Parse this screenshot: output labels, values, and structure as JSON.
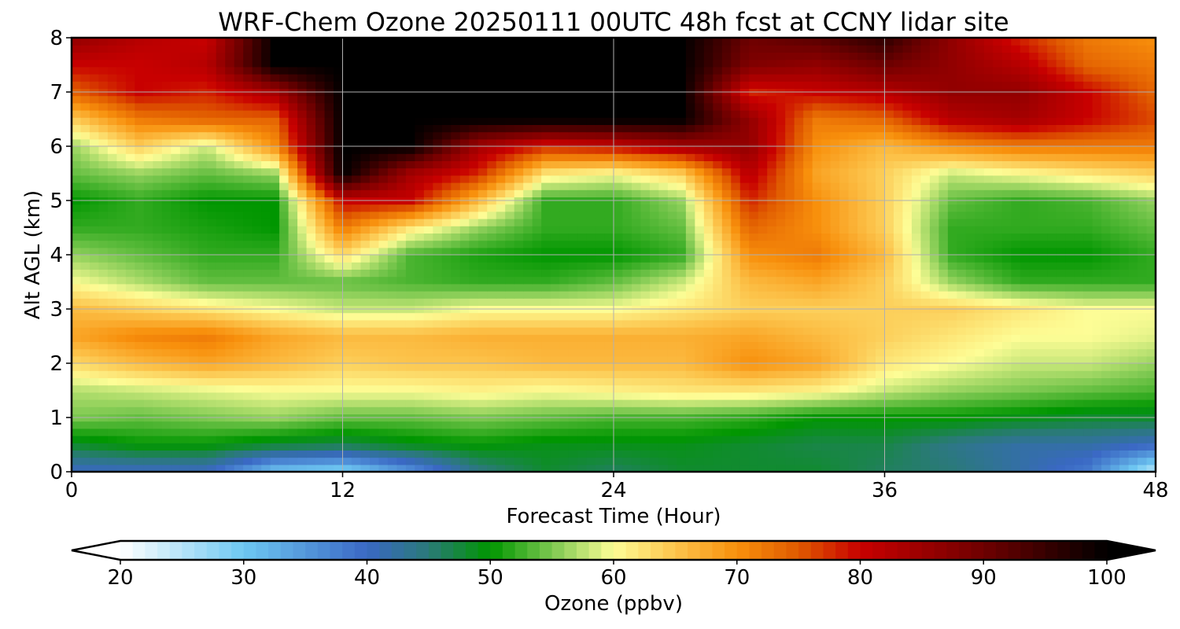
{
  "chart_data": {
    "type": "heatmap",
    "title": "WRF-Chem Ozone  20250111 00UTC 48h fcst at CCNY lidar site",
    "xlabel": "Forecast Time (Hour)",
    "ylabel": "Alt AGL (km)",
    "xlim": [
      0,
      48
    ],
    "ylim": [
      0,
      8
    ],
    "xticks": [
      "0",
      "12",
      "24",
      "36",
      "48"
    ],
    "yticks": [
      "0",
      "1",
      "2",
      "3",
      "4",
      "5",
      "6",
      "7",
      "8"
    ],
    "grid": true,
    "x": [
      0,
      3,
      6,
      9,
      12,
      15,
      18,
      21,
      24,
      27,
      30,
      33,
      36,
      39,
      42,
      45,
      48
    ],
    "y": [
      0,
      0.5,
      1,
      1.5,
      2,
      2.5,
      3,
      3.5,
      4,
      4.5,
      5,
      5.5,
      6,
      6.5,
      7,
      7.5,
      8
    ],
    "z": [
      [
        40,
        40,
        40,
        30,
        28,
        35,
        44,
        48,
        46,
        48,
        48,
        48,
        46,
        45,
        42,
        38,
        24
      ],
      [
        48,
        50,
        50,
        48,
        47,
        49,
        50,
        49,
        49,
        49,
        48,
        47,
        47,
        44,
        42,
        42,
        40
      ],
      [
        55,
        54,
        55,
        56,
        54,
        54,
        55,
        54,
        53,
        53,
        52,
        50,
        50,
        50,
        49,
        48,
        48
      ],
      [
        57,
        58,
        59,
        60,
        60,
        60,
        61,
        60,
        61,
        62,
        62,
        61,
        58,
        56,
        55,
        54,
        53
      ],
      [
        63,
        66,
        68,
        66,
        64,
        65,
        65,
        66,
        66,
        66,
        70,
        68,
        62,
        60,
        58,
        58,
        56
      ],
      [
        68,
        71,
        72,
        68,
        66,
        66,
        67,
        67,
        67,
        67,
        68,
        66,
        64,
        62,
        60,
        60,
        59
      ],
      [
        66,
        64,
        62,
        60,
        58,
        58,
        60,
        60,
        60,
        62,
        64,
        64,
        64,
        64,
        62,
        60,
        60
      ],
      [
        60,
        57,
        54,
        54,
        54,
        53,
        52,
        52,
        54,
        58,
        66,
        68,
        64,
        56,
        52,
        52,
        52
      ],
      [
        56,
        54,
        52,
        52,
        63,
        53,
        51,
        50,
        50,
        52,
        70,
        72,
        66,
        52,
        50,
        50,
        52
      ],
      [
        52,
        52,
        51,
        50,
        72,
        62,
        56,
        52,
        52,
        54,
        74,
        70,
        64,
        52,
        52,
        52,
        54
      ],
      [
        50,
        52,
        50,
        50,
        80,
        80,
        66,
        52,
        52,
        56,
        78,
        70,
        64,
        54,
        52,
        53,
        56
      ],
      [
        54,
        56,
        54,
        56,
        100,
        84,
        78,
        62,
        60,
        64,
        82,
        68,
        64,
        58,
        60,
        62,
        64
      ],
      [
        56,
        64,
        58,
        70,
        100,
        100,
        84,
        78,
        80,
        84,
        86,
        70,
        66,
        70,
        72,
        72,
        72
      ],
      [
        64,
        72,
        74,
        74,
        100,
        100,
        100,
        100,
        100,
        100,
        86,
        72,
        74,
        82,
        84,
        80,
        76
      ],
      [
        74,
        80,
        78,
        84,
        100,
        100,
        100,
        100,
        100,
        100,
        78,
        80,
        82,
        86,
        86,
        80,
        74
      ],
      [
        80,
        80,
        82,
        100,
        100,
        100,
        100,
        100,
        100,
        100,
        88,
        86,
        90,
        86,
        82,
        74,
        72
      ],
      [
        86,
        82,
        80,
        100,
        100,
        100,
        100,
        100,
        100,
        100,
        90,
        92,
        96,
        86,
        78,
        72,
        70
      ]
    ],
    "colorbar": {
      "label": "Ozone  (ppbv)",
      "ticks": [
        "20",
        "30",
        "40",
        "50",
        "60",
        "70",
        "80",
        "90",
        "100"
      ],
      "range": [
        20,
        100
      ],
      "extend": "both",
      "stops": [
        {
          "v": 20,
          "c": "#ffffff"
        },
        {
          "v": 30,
          "c": "#6ec8f2"
        },
        {
          "v": 40,
          "c": "#3a68c4"
        },
        {
          "v": 45,
          "c": "#2a7a78"
        },
        {
          "v": 50,
          "c": "#009600"
        },
        {
          "v": 55,
          "c": "#7cc850"
        },
        {
          "v": 60,
          "c": "#fdfd96"
        },
        {
          "v": 65,
          "c": "#fcc44c"
        },
        {
          "v": 70,
          "c": "#f8900c"
        },
        {
          "v": 75,
          "c": "#e05a00"
        },
        {
          "v": 80,
          "c": "#c80000"
        },
        {
          "v": 90,
          "c": "#6e0000"
        },
        {
          "v": 100,
          "c": "#000000"
        }
      ]
    }
  }
}
